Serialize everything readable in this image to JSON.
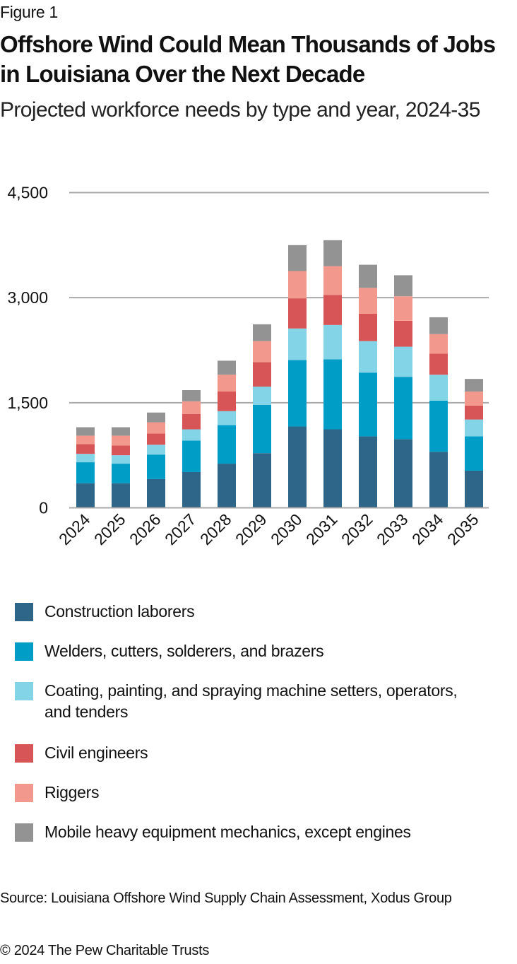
{
  "header": {
    "figure_label": "Figure 1",
    "title": "Offshore Wind Could Mean Thousands of Jobs in Louisiana Over the Next Decade",
    "subtitle": "Projected workforce needs by type and year, 2024-35"
  },
  "chart_data": {
    "type": "bar",
    "stacked": true,
    "title": "Offshore Wind Could Mean Thousands of Jobs in Louisiana Over the Next Decade",
    "subtitle": "Projected workforce needs by type and year, 2024-35",
    "xlabel": "",
    "ylabel": "",
    "categories": [
      "2024",
      "2025",
      "2026",
      "2027",
      "2028",
      "2029",
      "2030",
      "2031",
      "2032",
      "2033",
      "2034",
      "2035"
    ],
    "ylim": [
      0,
      4500
    ],
    "yticks": [
      0,
      1500,
      3000,
      4500
    ],
    "ytick_labels": [
      "0",
      "1,500",
      "3,000",
      "4,500"
    ],
    "grid": true,
    "legend_position": "bottom",
    "series": [
      {
        "name": "Construction laborers",
        "color": "#2d6688",
        "values": [
          350,
          350,
          410,
          510,
          630,
          780,
          1160,
          1120,
          1020,
          980,
          800,
          530
        ]
      },
      {
        "name": "Welders, cutters, solderers, and brazers",
        "color": "#009dc7",
        "values": [
          300,
          280,
          350,
          450,
          550,
          690,
          950,
          1000,
          910,
          890,
          730,
          490
        ]
      },
      {
        "name": "Coating, painting, and spraying machine setters, operators, and tenders",
        "color": "#84d4e8",
        "values": [
          120,
          120,
          140,
          160,
          200,
          260,
          450,
          490,
          450,
          430,
          370,
          240
        ]
      },
      {
        "name": "Civil engineers",
        "color": "#d85557",
        "values": [
          140,
          140,
          160,
          220,
          280,
          350,
          430,
          430,
          390,
          370,
          300,
          200
        ]
      },
      {
        "name": "Riggers",
        "color": "#f3988c",
        "values": [
          120,
          140,
          160,
          180,
          240,
          300,
          390,
          410,
          370,
          350,
          280,
          200
        ]
      },
      {
        "name": "Mobile heavy equipment mechanics, except engines",
        "color": "#939393",
        "values": [
          120,
          120,
          140,
          160,
          200,
          240,
          370,
          370,
          330,
          300,
          240,
          180
        ]
      }
    ]
  },
  "legend": {
    "items": [
      {
        "label": "Construction laborers",
        "color": "#2d6688"
      },
      {
        "label": "Welders, cutters, solderers, and brazers",
        "color": "#009dc7"
      },
      {
        "label": "Coating, painting, and spraying machine setters, operators, and tenders",
        "color": "#84d4e8"
      },
      {
        "label": "Civil engineers",
        "color": "#d85557"
      },
      {
        "label": "Riggers",
        "color": "#f3988c"
      },
      {
        "label": "Mobile heavy equipment mechanics, except engines",
        "color": "#939393"
      }
    ]
  },
  "footer": {
    "source": "Source: Louisiana Offshore Wind Supply Chain Assessment, Xodus Group",
    "copyright": "© 2024 The Pew Charitable Trusts"
  }
}
